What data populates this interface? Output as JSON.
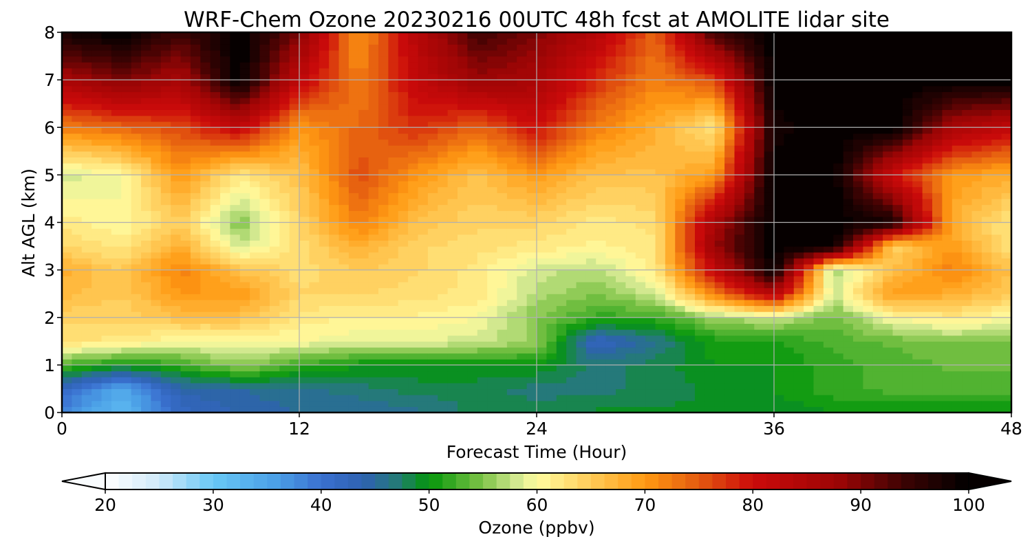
{
  "chart_data": {
    "type": "heatmap",
    "title": "WRF-Chem Ozone  20230216 00UTC 48h fcst at AMOLITE lidar site",
    "xlabel": "Forecast Time (Hour)",
    "ylabel": "Alt AGL (km)",
    "xlim": [
      0,
      48
    ],
    "ylim": [
      0,
      8
    ],
    "x_ticks": [
      0,
      12,
      24,
      36,
      48
    ],
    "y_ticks": [
      0,
      1,
      2,
      3,
      4,
      5,
      6,
      7,
      8
    ],
    "grid": true,
    "x": [
      0,
      3,
      6,
      9,
      12,
      15,
      18,
      21,
      24,
      27,
      30,
      33,
      36,
      39,
      42,
      45,
      48
    ],
    "y": [
      0,
      0.5,
      1,
      1.5,
      2,
      2.5,
      3,
      3.5,
      4,
      5,
      6,
      7,
      8
    ],
    "z": [
      [
        38,
        32,
        42,
        44,
        45,
        45,
        46,
        48,
        48,
        49,
        49,
        49,
        49,
        50,
        50,
        50,
        50
      ],
      [
        42,
        34,
        44,
        45,
        46,
        47,
        48,
        48,
        47,
        47,
        48,
        49,
        50,
        52,
        53,
        53,
        53
      ],
      [
        53,
        50,
        52,
        56,
        52,
        50,
        50,
        50,
        50,
        47,
        48,
        50,
        50,
        52,
        53,
        54,
        54
      ],
      [
        63,
        62,
        60,
        60,
        60,
        59,
        59,
        58,
        56,
        42,
        46,
        51,
        51,
        53,
        54,
        55,
        55
      ],
      [
        64,
        64,
        66,
        66,
        62,
        61,
        61,
        60,
        55,
        52,
        52,
        56,
        58,
        54,
        60,
        62,
        60
      ],
      [
        67,
        65,
        70,
        70,
        64,
        64,
        63,
        62,
        57,
        55,
        58,
        72,
        84,
        58,
        70,
        68,
        65
      ],
      [
        68,
        65,
        72,
        66,
        63,
        65,
        64,
        62,
        58,
        57,
        62,
        82,
        100,
        56,
        66,
        72,
        66
      ],
      [
        64,
        62,
        68,
        58,
        63,
        68,
        64,
        63,
        62,
        61,
        62,
        88,
        100,
        100,
        64,
        70,
        62
      ],
      [
        62,
        60,
        65,
        55,
        64,
        72,
        66,
        64,
        64,
        62,
        63,
        86,
        100,
        100,
        98,
        68,
        62
      ],
      [
        58,
        60,
        70,
        62,
        66,
        76,
        70,
        66,
        70,
        66,
        66,
        70,
        100,
        100,
        80,
        70,
        68
      ],
      [
        72,
        74,
        76,
        82,
        70,
        74,
        78,
        74,
        80,
        72,
        68,
        62,
        98,
        100,
        100,
        86,
        82
      ],
      [
        86,
        90,
        86,
        100,
        82,
        72,
        82,
        88,
        86,
        78,
        72,
        76,
        100,
        100,
        100,
        100,
        100
      ],
      [
        98,
        100,
        94,
        100,
        90,
        70,
        84,
        94,
        90,
        84,
        74,
        94,
        100,
        100,
        100,
        100,
        100
      ]
    ],
    "colorbar": {
      "label": "Ozone  (ppbv)",
      "min": 20,
      "max": 100,
      "ticks": [
        20,
        30,
        40,
        50,
        60,
        70,
        80,
        90,
        100
      ],
      "extend": "both",
      "colors": [
        {
          "value": 20,
          "color": "#ffffff"
        },
        {
          "value": 25,
          "color": "#cfe9f9"
        },
        {
          "value": 30,
          "color": "#68c8f6"
        },
        {
          "value": 36,
          "color": "#4a9ee6"
        },
        {
          "value": 40,
          "color": "#3a70d0"
        },
        {
          "value": 44,
          "color": "#2e62b0"
        },
        {
          "value": 47,
          "color": "#257a78"
        },
        {
          "value": 50,
          "color": "#03960a"
        },
        {
          "value": 55,
          "color": "#7fc448"
        },
        {
          "value": 58,
          "color": "#cfe78e"
        },
        {
          "value": 60,
          "color": "#fffca0"
        },
        {
          "value": 64,
          "color": "#ffd566"
        },
        {
          "value": 70,
          "color": "#ff9a12"
        },
        {
          "value": 75,
          "color": "#e45a10"
        },
        {
          "value": 80,
          "color": "#cc0a0a"
        },
        {
          "value": 88,
          "color": "#9c0505"
        },
        {
          "value": 94,
          "color": "#3c0303"
        },
        {
          "value": 100,
          "color": "#000000"
        }
      ]
    }
  }
}
